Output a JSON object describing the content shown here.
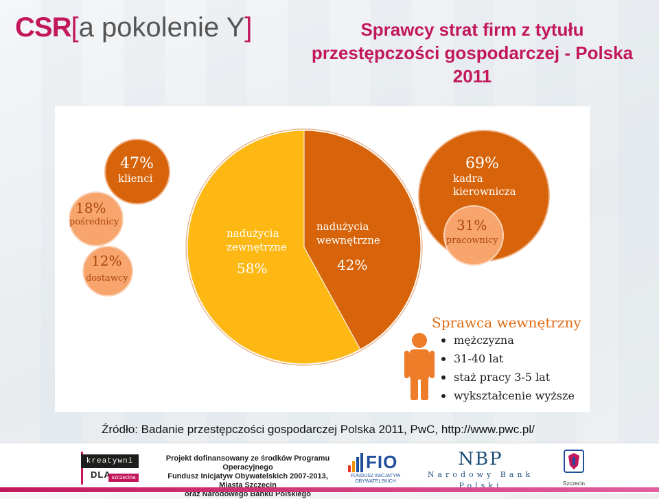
{
  "colors": {
    "logo_pink": "#c2185b",
    "logo_gray": "#555555",
    "title_color": "#c2185b",
    "dark_orange": "#d7640a",
    "light_orange": "#f7a56d",
    "yellow": "#fdb813",
    "text_dark": "#333333",
    "figure_orange": "#ee7d29"
  },
  "logo": {
    "csr": "CSR",
    "bracket_open": "[",
    "text": "a pokolenie Y",
    "bracket_close": "]"
  },
  "title": {
    "line1": "Sprawcy strat firm z tytułu",
    "line2": "przestępczości gospodarczej - Polska",
    "line3": "2011"
  },
  "chart_data": {
    "type": "pie",
    "slices": [
      {
        "label_line1": "nadużycia",
        "label_line2": "zewnętrzne",
        "value": 58,
        "value_label": "58%",
        "color": "#fdb813"
      },
      {
        "label_line1": "nadużycia",
        "label_line2": "wewnętrzne",
        "value": 42,
        "value_label": "42%",
        "color": "#d7640a"
      }
    ],
    "external_breakdown": [
      {
        "value_label": "47%",
        "label": "klienci",
        "color": "#d7640a"
      },
      {
        "value_label": "18%",
        "label": "pośrednicy",
        "color": "#f7a56d"
      },
      {
        "value_label": "12%",
        "label": "dostawcy",
        "color": "#f7a56d"
      }
    ],
    "internal_breakdown": [
      {
        "value_label": "69%",
        "label_line1": "kadra",
        "label_line2": "kierownicza",
        "color": "#d7640a"
      },
      {
        "value_label": "31%",
        "label": "pracownicy",
        "color": "#f7a56d"
      }
    ],
    "profile": {
      "title": "Sprawca wewnętrzny",
      "items": [
        "mężczyzna",
        "31-40 lat",
        "staż pracy 3-5 lat",
        "wykształcenie wyższe"
      ]
    }
  },
  "source": "Źródło: Badanie przestępczości gospodarczej Polska 2011, PwC, http://www.pwc.pl/",
  "footer": {
    "kreatywni_top": "kreatywni",
    "kreatywni_dla": "DLA",
    "kreatywni_city": "szczecina",
    "project_line1": "Projekt dofinansowany ze środków Programu Operacyjnego",
    "project_line2": "Fundusz Inicjatyw Obywatelskich 2007-2013, Miasta Szczecin",
    "project_line3": "oraz Narodowego Banku Polskiego",
    "fio_name": "FIO",
    "fio_sub": "FUNDUSZ INICJATYW OBYWATELSKICH",
    "nbp_name": "NBP",
    "nbp_sub": "Narodowy Bank Polski",
    "szczecin_label": "Szczecin"
  }
}
